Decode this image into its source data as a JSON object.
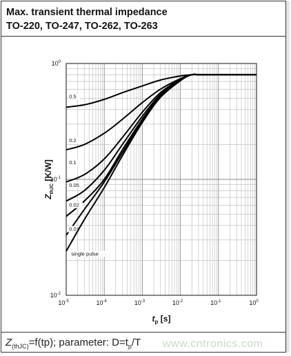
{
  "header": {
    "line1": "Max. transient thermal impedance",
    "line2": "TO-220, TO-247, TO-262, TO-263"
  },
  "footer": {
    "z_symbol": "Z",
    "z_subscript": "(thJC)",
    "text": "=f(tp); parameter: D=t",
    "tp_subscript": "p",
    "text_end": "/T"
  },
  "watermark": "www.cntronics.com",
  "chart_data": {
    "type": "line",
    "xscale": "log",
    "yscale": "log",
    "xlim": [
      1e-05,
      1
    ],
    "ylim": [
      0.01,
      1
    ],
    "xlabel_main": "t",
    "xlabel_sub": "p",
    "xlabel_unit": " [s]",
    "ylabel_main": "Z",
    "ylabel_sub": "thJC",
    "ylabel_unit": " [K/W]",
    "grid": true,
    "x_ticks": [
      {
        "value": 1e-05,
        "base": "10",
        "exp": "-5"
      },
      {
        "value": 0.0001,
        "base": "10",
        "exp": "-4"
      },
      {
        "value": 0.001,
        "base": "10",
        "exp": "-3"
      },
      {
        "value": 0.01,
        "base": "10",
        "exp": "-2"
      },
      {
        "value": 0.1,
        "base": "10",
        "exp": "-1"
      },
      {
        "value": 1,
        "base": "10",
        "exp": "0"
      }
    ],
    "y_ticks": [
      {
        "value": 1,
        "base": "10",
        "exp": "0"
      },
      {
        "value": 0.1,
        "base": "10",
        "exp": "-1"
      },
      {
        "value": 0.01,
        "base": "10",
        "exp": "-2"
      }
    ],
    "series": [
      {
        "name": "0.5",
        "label_at": [
          1.1e-05,
          0.5
        ],
        "points": [
          [
            1e-05,
            0.42
          ],
          [
            3e-05,
            0.44
          ],
          [
            0.0001,
            0.49
          ],
          [
            0.0003,
            0.56
          ],
          [
            0.001,
            0.64
          ],
          [
            0.003,
            0.72
          ],
          [
            0.01,
            0.78
          ],
          [
            0.02,
            0.8
          ],
          [
            0.04,
            0.8
          ],
          [
            1,
            0.8
          ]
        ]
      },
      {
        "name": "0.2",
        "label_at": [
          1.1e-05,
          0.21
        ],
        "points": [
          [
            1e-05,
            0.18
          ],
          [
            3e-05,
            0.2
          ],
          [
            0.0001,
            0.25
          ],
          [
            0.0003,
            0.33
          ],
          [
            0.001,
            0.46
          ],
          [
            0.003,
            0.6
          ],
          [
            0.01,
            0.74
          ],
          [
            0.02,
            0.8
          ],
          [
            0.04,
            0.8
          ],
          [
            1,
            0.8
          ]
        ]
      },
      {
        "name": "0.1",
        "label_at": [
          1.1e-05,
          0.135
        ],
        "points": [
          [
            1e-05,
            0.095
          ],
          [
            3e-05,
            0.11
          ],
          [
            0.0001,
            0.15
          ],
          [
            0.0003,
            0.23
          ],
          [
            0.001,
            0.38
          ],
          [
            0.003,
            0.56
          ],
          [
            0.01,
            0.73
          ],
          [
            0.02,
            0.8
          ],
          [
            0.04,
            0.8
          ],
          [
            1,
            0.8
          ]
        ]
      },
      {
        "name": "0.05",
        "label_at": [
          1.1e-05,
          0.086
        ],
        "points": [
          [
            1e-05,
            0.065
          ],
          [
            3e-05,
            0.08
          ],
          [
            0.0001,
            0.12
          ],
          [
            0.0003,
            0.2
          ],
          [
            0.001,
            0.35
          ],
          [
            0.003,
            0.54
          ],
          [
            0.01,
            0.72
          ],
          [
            0.02,
            0.8
          ],
          [
            0.04,
            0.8
          ],
          [
            1,
            0.8
          ]
        ]
      },
      {
        "name": "0.02",
        "label_at": [
          1.1e-05,
          0.058
        ],
        "points": [
          [
            1e-05,
            0.048
          ],
          [
            3e-05,
            0.065
          ],
          [
            0.0001,
            0.1
          ],
          [
            0.0003,
            0.18
          ],
          [
            0.001,
            0.33
          ],
          [
            0.003,
            0.53
          ],
          [
            0.01,
            0.72
          ],
          [
            0.02,
            0.8
          ],
          [
            0.04,
            0.8
          ],
          [
            1,
            0.8
          ]
        ]
      },
      {
        "name": "0.01",
        "label_at": [
          1.1e-05,
          0.036
        ],
        "points": [
          [
            1e-05,
            0.033
          ],
          [
            3e-05,
            0.055
          ],
          [
            0.0001,
            0.095
          ],
          [
            0.0003,
            0.17
          ],
          [
            0.001,
            0.32
          ],
          [
            0.003,
            0.52
          ],
          [
            0.01,
            0.72
          ],
          [
            0.02,
            0.8
          ],
          [
            0.04,
            0.8
          ],
          [
            1,
            0.8
          ]
        ]
      },
      {
        "name": "single pulse",
        "label_at": [
          1.25e-05,
          0.022
        ],
        "points": [
          [
            1e-05,
            0.024
          ],
          [
            3e-05,
            0.045
          ],
          [
            0.0001,
            0.085
          ],
          [
            0.0003,
            0.16
          ],
          [
            0.001,
            0.31
          ],
          [
            0.003,
            0.51
          ],
          [
            0.01,
            0.71
          ],
          [
            0.02,
            0.8
          ],
          [
            0.04,
            0.8
          ],
          [
            1,
            0.8
          ]
        ]
      }
    ]
  }
}
